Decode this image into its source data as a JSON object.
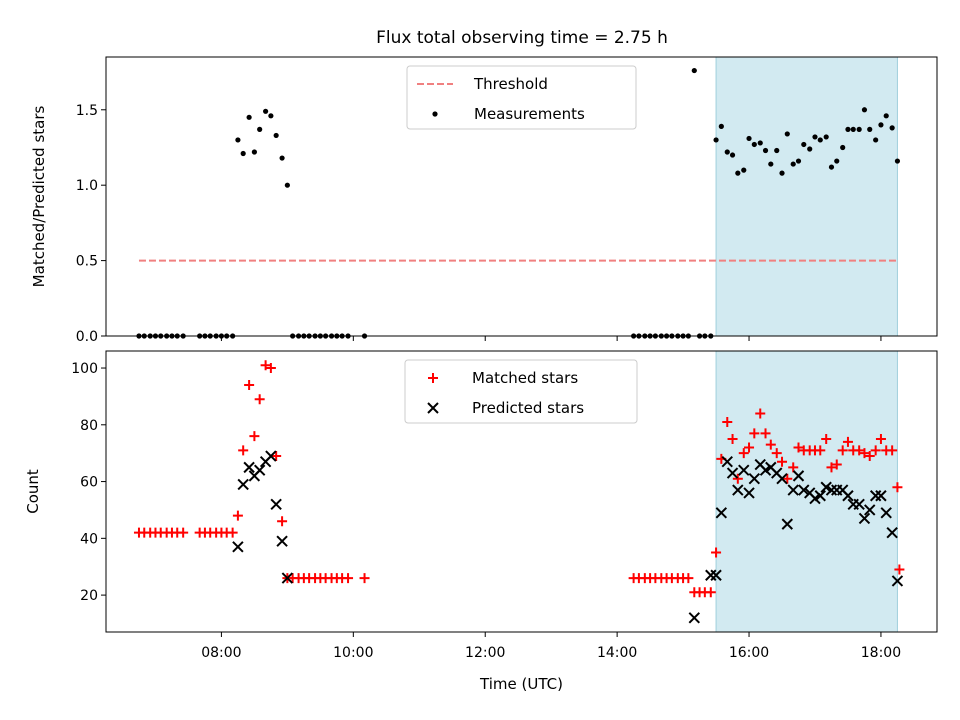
{
  "title": "Flux total observing time = 2.75 h",
  "chart_data": [
    {
      "type": "scatter",
      "ylabel": "Matched/Predicted stars",
      "xlim_hours": [
        6.25,
        18.85
      ],
      "ylim": [
        0,
        1.85
      ],
      "y_ticks": [
        {
          "value": 0.0,
          "label": "0.0"
        },
        {
          "value": 0.5,
          "label": "0.5"
        },
        {
          "value": 1.0,
          "label": "1.0"
        },
        {
          "value": 1.5,
          "label": "1.5"
        }
      ],
      "shaded_span_hours": [
        15.5,
        18.25
      ],
      "threshold": {
        "name": "Threshold",
        "value": 0.5,
        "x_range_hours": [
          6.75,
          18.25
        ],
        "color": "#f08080"
      },
      "legend": {
        "location": "upper-center",
        "entries": [
          "Threshold",
          "Measurements"
        ]
      },
      "series": [
        {
          "name": "Measurements",
          "color": "#000000",
          "points": [
            [
              6.75,
              0
            ],
            [
              6.83,
              0
            ],
            [
              6.92,
              0
            ],
            [
              7.0,
              0
            ],
            [
              7.08,
              0
            ],
            [
              7.17,
              0
            ],
            [
              7.25,
              0
            ],
            [
              7.33,
              0
            ],
            [
              7.42,
              0
            ],
            [
              7.67,
              0
            ],
            [
              7.75,
              0
            ],
            [
              7.83,
              0
            ],
            [
              7.92,
              0
            ],
            [
              8.0,
              0
            ],
            [
              8.08,
              0
            ],
            [
              8.17,
              0
            ],
            [
              8.25,
              1.3
            ],
            [
              8.33,
              1.21
            ],
            [
              8.42,
              1.45
            ],
            [
              8.5,
              1.22
            ],
            [
              8.58,
              1.37
            ],
            [
              8.67,
              1.49
            ],
            [
              8.75,
              1.46
            ],
            [
              8.83,
              1.33
            ],
            [
              8.92,
              1.18
            ],
            [
              9.0,
              1.0
            ],
            [
              9.08,
              0
            ],
            [
              9.17,
              0
            ],
            [
              9.25,
              0
            ],
            [
              9.33,
              0
            ],
            [
              9.42,
              0
            ],
            [
              9.5,
              0
            ],
            [
              9.58,
              0
            ],
            [
              9.67,
              0
            ],
            [
              9.75,
              0
            ],
            [
              9.83,
              0
            ],
            [
              9.92,
              0
            ],
            [
              10.17,
              0
            ],
            [
              14.25,
              0
            ],
            [
              14.33,
              0
            ],
            [
              14.42,
              0
            ],
            [
              14.5,
              0
            ],
            [
              14.58,
              0
            ],
            [
              14.67,
              0
            ],
            [
              14.75,
              0
            ],
            [
              14.83,
              0
            ],
            [
              14.92,
              0
            ],
            [
              15.0,
              0
            ],
            [
              15.08,
              0
            ],
            [
              15.17,
              1.76
            ],
            [
              15.25,
              0
            ],
            [
              15.33,
              0
            ],
            [
              15.42,
              0
            ],
            [
              15.5,
              1.3
            ],
            [
              15.58,
              1.39
            ],
            [
              15.67,
              1.22
            ],
            [
              15.75,
              1.2
            ],
            [
              15.83,
              1.08
            ],
            [
              15.92,
              1.1
            ],
            [
              16.0,
              1.31
            ],
            [
              16.08,
              1.27
            ],
            [
              16.17,
              1.28
            ],
            [
              16.25,
              1.23
            ],
            [
              16.33,
              1.14
            ],
            [
              16.42,
              1.23
            ],
            [
              16.5,
              1.08
            ],
            [
              16.58,
              1.34
            ],
            [
              16.67,
              1.14
            ],
            [
              16.75,
              1.16
            ],
            [
              16.83,
              1.27
            ],
            [
              16.92,
              1.24
            ],
            [
              17.0,
              1.32
            ],
            [
              17.08,
              1.3
            ],
            [
              17.17,
              1.32
            ],
            [
              17.25,
              1.12
            ],
            [
              17.33,
              1.16
            ],
            [
              17.42,
              1.25
            ],
            [
              17.5,
              1.37
            ],
            [
              17.58,
              1.37
            ],
            [
              17.67,
              1.37
            ],
            [
              17.75,
              1.5
            ],
            [
              17.83,
              1.37
            ],
            [
              17.92,
              1.3
            ],
            [
              18.0,
              1.4
            ],
            [
              18.08,
              1.46
            ],
            [
              18.17,
              1.38
            ],
            [
              18.25,
              1.16
            ]
          ]
        }
      ]
    },
    {
      "type": "scatter",
      "xlabel": "Time (UTC)",
      "ylabel": "Count",
      "xlim_hours": [
        6.25,
        18.85
      ],
      "ylim": [
        7,
        106
      ],
      "y_ticks": [
        {
          "value": 20,
          "label": "20"
        },
        {
          "value": 40,
          "label": "40"
        },
        {
          "value": 60,
          "label": "60"
        },
        {
          "value": 80,
          "label": "80"
        },
        {
          "value": 100,
          "label": "100"
        }
      ],
      "x_ticks": [
        {
          "value": 8,
          "label": "08:00"
        },
        {
          "value": 10,
          "label": "10:00"
        },
        {
          "value": 12,
          "label": "12:00"
        },
        {
          "value": 14,
          "label": "14:00"
        },
        {
          "value": 16,
          "label": "16:00"
        },
        {
          "value": 18,
          "label": "18:00"
        }
      ],
      "shaded_span_hours": [
        15.5,
        18.25
      ],
      "legend": {
        "location": "upper-center",
        "entries": [
          "Matched stars",
          "Predicted stars"
        ]
      },
      "series": [
        {
          "name": "Matched stars",
          "marker": "plus",
          "color": "#ff0000",
          "points": [
            [
              6.75,
              42
            ],
            [
              6.83,
              42
            ],
            [
              6.92,
              42
            ],
            [
              7.0,
              42
            ],
            [
              7.08,
              42
            ],
            [
              7.17,
              42
            ],
            [
              7.25,
              42
            ],
            [
              7.33,
              42
            ],
            [
              7.42,
              42
            ],
            [
              7.67,
              42
            ],
            [
              7.75,
              42
            ],
            [
              7.83,
              42
            ],
            [
              7.92,
              42
            ],
            [
              8.0,
              42
            ],
            [
              8.08,
              42
            ],
            [
              8.17,
              42
            ],
            [
              8.25,
              48
            ],
            [
              8.33,
              71
            ],
            [
              8.42,
              94
            ],
            [
              8.5,
              76
            ],
            [
              8.58,
              89
            ],
            [
              8.67,
              101
            ],
            [
              8.75,
              100
            ],
            [
              8.83,
              69
            ],
            [
              8.92,
              46
            ],
            [
              9.0,
              26
            ],
            [
              9.08,
              26
            ],
            [
              9.17,
              26
            ],
            [
              9.25,
              26
            ],
            [
              9.33,
              26
            ],
            [
              9.42,
              26
            ],
            [
              9.5,
              26
            ],
            [
              9.58,
              26
            ],
            [
              9.67,
              26
            ],
            [
              9.75,
              26
            ],
            [
              9.83,
              26
            ],
            [
              9.92,
              26
            ],
            [
              10.17,
              26
            ],
            [
              14.25,
              26
            ],
            [
              14.33,
              26
            ],
            [
              14.42,
              26
            ],
            [
              14.5,
              26
            ],
            [
              14.58,
              26
            ],
            [
              14.67,
              26
            ],
            [
              14.75,
              26
            ],
            [
              14.83,
              26
            ],
            [
              14.92,
              26
            ],
            [
              15.0,
              26
            ],
            [
              15.08,
              26
            ],
            [
              15.17,
              21
            ],
            [
              15.25,
              21
            ],
            [
              15.33,
              21
            ],
            [
              15.42,
              21
            ],
            [
              15.5,
              35
            ],
            [
              15.58,
              68
            ],
            [
              15.67,
              81
            ],
            [
              15.75,
              75
            ],
            [
              15.83,
              61
            ],
            [
              15.92,
              70
            ],
            [
              16.0,
              72
            ],
            [
              16.08,
              77
            ],
            [
              16.17,
              84
            ],
            [
              16.25,
              77
            ],
            [
              16.33,
              73
            ],
            [
              16.42,
              70
            ],
            [
              16.5,
              67
            ],
            [
              16.58,
              61
            ],
            [
              16.67,
              65
            ],
            [
              16.75,
              72
            ],
            [
              16.83,
              71
            ],
            [
              16.92,
              71
            ],
            [
              17.0,
              71
            ],
            [
              17.08,
              71
            ],
            [
              17.17,
              75
            ],
            [
              17.25,
              65
            ],
            [
              17.33,
              66
            ],
            [
              17.42,
              71
            ],
            [
              17.5,
              74
            ],
            [
              17.58,
              71
            ],
            [
              17.67,
              71
            ],
            [
              17.75,
              70
            ],
            [
              17.83,
              69
            ],
            [
              17.92,
              71
            ],
            [
              18.0,
              75
            ],
            [
              18.08,
              71
            ],
            [
              18.17,
              71
            ],
            [
              18.25,
              58
            ],
            [
              18.28,
              29
            ]
          ]
        },
        {
          "name": "Predicted stars",
          "marker": "x",
          "color": "#000000",
          "points": [
            [
              8.25,
              37
            ],
            [
              8.33,
              59
            ],
            [
              8.42,
              65
            ],
            [
              8.5,
              62
            ],
            [
              8.58,
              64
            ],
            [
              8.67,
              67
            ],
            [
              8.75,
              69
            ],
            [
              8.83,
              52
            ],
            [
              8.92,
              39
            ],
            [
              9.0,
              26
            ],
            [
              15.17,
              12
            ],
            [
              15.42,
              27
            ],
            [
              15.5,
              27
            ],
            [
              15.58,
              49
            ],
            [
              15.67,
              67
            ],
            [
              15.75,
              63
            ],
            [
              15.83,
              57
            ],
            [
              15.92,
              64
            ],
            [
              16.0,
              56
            ],
            [
              16.08,
              61
            ],
            [
              16.17,
              66
            ],
            [
              16.25,
              64
            ],
            [
              16.33,
              65
            ],
            [
              16.42,
              63
            ],
            [
              16.5,
              61
            ],
            [
              16.58,
              45
            ],
            [
              16.67,
              57
            ],
            [
              16.75,
              62
            ],
            [
              16.83,
              57
            ],
            [
              16.92,
              56
            ],
            [
              17.0,
              54
            ],
            [
              17.08,
              55
            ],
            [
              17.17,
              58
            ],
            [
              17.25,
              57
            ],
            [
              17.33,
              57
            ],
            [
              17.42,
              57
            ],
            [
              17.5,
              55
            ],
            [
              17.58,
              52
            ],
            [
              17.67,
              52
            ],
            [
              17.75,
              47
            ],
            [
              17.83,
              50
            ],
            [
              17.92,
              55
            ],
            [
              18.0,
              55
            ],
            [
              18.08,
              49
            ],
            [
              18.17,
              42
            ],
            [
              18.25,
              25
            ]
          ]
        }
      ]
    }
  ]
}
